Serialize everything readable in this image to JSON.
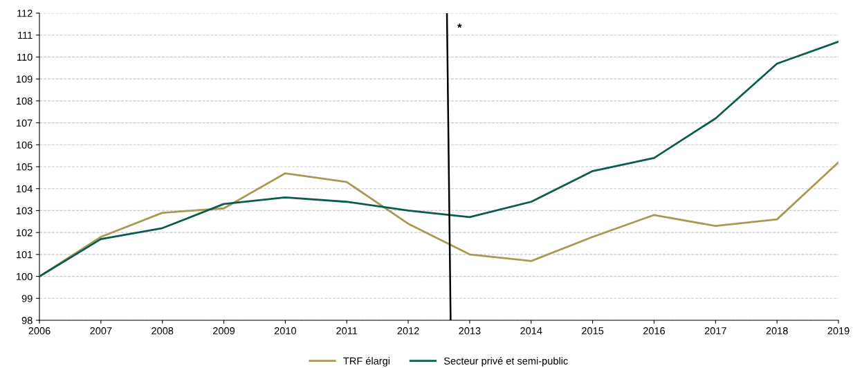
{
  "chart_data": {
    "type": "line",
    "x": [
      2006,
      2007,
      2008,
      2009,
      2010,
      2011,
      2012,
      2013,
      2014,
      2015,
      2016,
      2017,
      2018,
      2019
    ],
    "series": [
      {
        "name": "TRF élargi",
        "color": "#a69a55",
        "values": [
          100,
          101.8,
          102.9,
          103.1,
          104.7,
          104.3,
          102.4,
          101.0,
          100.7,
          101.8,
          102.8,
          102.3,
          102.6,
          105.2
        ]
      },
      {
        "name": "Secteur privé et semi-public",
        "color": "#0b5c4f",
        "values": [
          100,
          101.7,
          102.2,
          103.3,
          103.6,
          103.4,
          103.0,
          102.7,
          103.4,
          104.8,
          105.4,
          107.2,
          109.7,
          110.7
        ]
      },
      {
        "type": "line",
        "color": "#000000",
        "x": [
          2012.63,
          2012.69
        ],
        "values": [
          112,
          98
        ]
      }
    ],
    "annotations": [
      "*"
    ],
    "xlim": [
      2006,
      2019
    ],
    "xticks": [
      2006,
      2007,
      2008,
      2009,
      2010,
      2011,
      2012,
      2013,
      2014,
      2015,
      2016,
      2017,
      2018,
      2019
    ],
    "ylim": [
      98,
      112
    ],
    "yticks": [
      98,
      99,
      100,
      101,
      102,
      103,
      104,
      105,
      106,
      107,
      108,
      109,
      110,
      111,
      112
    ],
    "grid": "y",
    "legend": "bottom",
    "marker": "none",
    "line_style": "solid"
  }
}
